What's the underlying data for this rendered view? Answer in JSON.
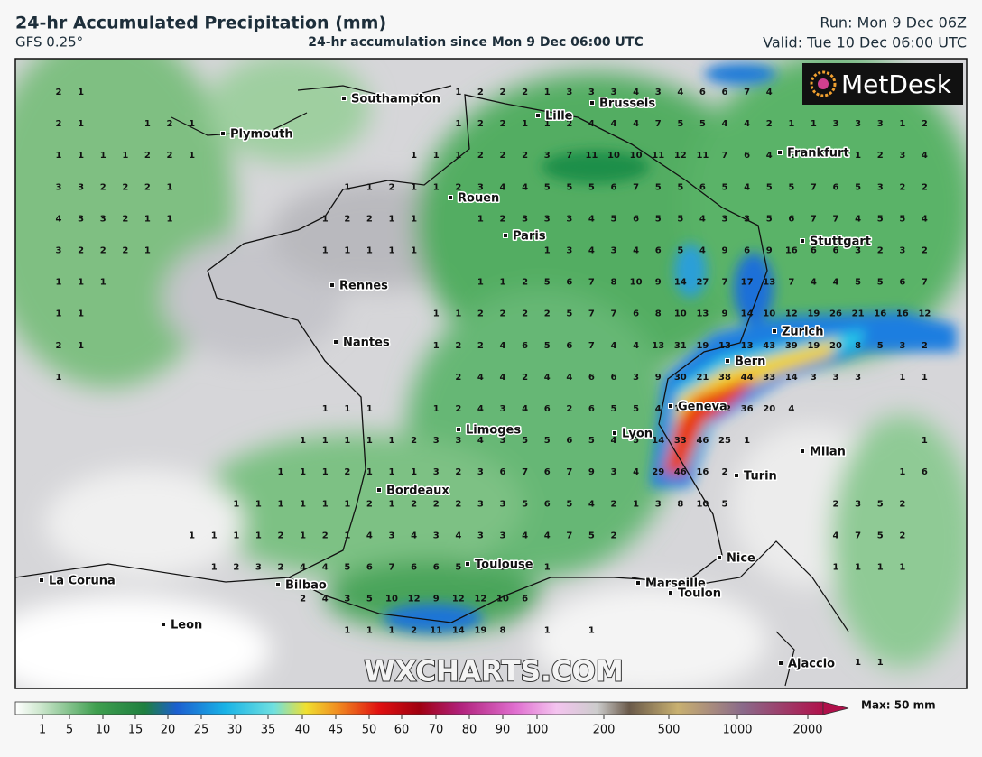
{
  "header": {
    "title": "24-hr Accumulated Precipitation (mm)",
    "model": "GFS 0.25°",
    "subtitle": "24-hr accumulation since Mon 9 Dec 06:00 UTC",
    "run": "Run: Mon 9 Dec 06Z",
    "valid": "Valid: Tue 10 Dec 06:00 UTC"
  },
  "logo": "MetDesk",
  "watermark": "WXCHARTS.COM",
  "cities": [
    "Southampton",
    "Plymouth",
    "Lille",
    "Brussels",
    "Frankfurt",
    "Rouen",
    "Paris",
    "Stuttgart",
    "Rennes",
    "Nantes",
    "Zurich",
    "Bern",
    "Geneva",
    "Limoges",
    "Lyon",
    "Milan",
    "Turin",
    "Bordeaux",
    "Toulouse",
    "Nice",
    "La Coruna",
    "Bilbao",
    "Marseille",
    "Toulon",
    "Leon",
    "Ajaccio"
  ],
  "grid": {
    "rows": [
      [
        2,
        1,
        null,
        null,
        null,
        null,
        null,
        null,
        null,
        null,
        null,
        null,
        null,
        null,
        null,
        null,
        null,
        null,
        1,
        2,
        2,
        2,
        1,
        3,
        3,
        3,
        4,
        3,
        4,
        6,
        6,
        7,
        4,
        null,
        null,
        null,
        null,
        null,
        null,
        null
      ],
      [
        2,
        1,
        null,
        null,
        1,
        2,
        1,
        null,
        null,
        null,
        null,
        null,
        null,
        null,
        null,
        null,
        null,
        null,
        1,
        2,
        2,
        1,
        1,
        2,
        4,
        4,
        4,
        7,
        5,
        5,
        4,
        4,
        2,
        1,
        1,
        3,
        3,
        3,
        1,
        2
      ],
      [
        1,
        1,
        1,
        1,
        2,
        2,
        1,
        null,
        null,
        null,
        null,
        null,
        null,
        null,
        null,
        null,
        1,
        1,
        1,
        2,
        2,
        2,
        3,
        7,
        11,
        10,
        10,
        11,
        12,
        11,
        7,
        6,
        4,
        2,
        1,
        1,
        1,
        2,
        3,
        4
      ],
      [
        3,
        3,
        2,
        2,
        2,
        1,
        null,
        null,
        null,
        null,
        null,
        null,
        null,
        1,
        1,
        2,
        1,
        1,
        2,
        3,
        4,
        4,
        5,
        5,
        5,
        6,
        7,
        5,
        5,
        6,
        5,
        4,
        5,
        5,
        7,
        6,
        5,
        3,
        2,
        2
      ],
      [
        4,
        3,
        3,
        2,
        1,
        1,
        null,
        null,
        null,
        null,
        null,
        null,
        1,
        2,
        2,
        1,
        1,
        null,
        null,
        1,
        2,
        3,
        3,
        3,
        4,
        5,
        6,
        5,
        5,
        4,
        3,
        3,
        5,
        6,
        7,
        7,
        4,
        5,
        5,
        4
      ],
      [
        3,
        2,
        2,
        2,
        1,
        null,
        null,
        null,
        null,
        null,
        null,
        null,
        1,
        1,
        1,
        1,
        1,
        null,
        null,
        null,
        null,
        null,
        1,
        3,
        4,
        3,
        4,
        6,
        5,
        4,
        9,
        6,
        9,
        16,
        6,
        6,
        3,
        2,
        3,
        2
      ],
      [
        1,
        1,
        1,
        null,
        null,
        null,
        null,
        null,
        null,
        null,
        null,
        null,
        null,
        null,
        null,
        null,
        null,
        null,
        null,
        1,
        1,
        2,
        5,
        6,
        7,
        8,
        10,
        9,
        14,
        27,
        7,
        17,
        13,
        7,
        4,
        4,
        5,
        5,
        6,
        7
      ],
      [
        1,
        1,
        null,
        null,
        null,
        null,
        null,
        null,
        null,
        null,
        null,
        null,
        null,
        null,
        null,
        null,
        null,
        1,
        1,
        2,
        2,
        2,
        2,
        5,
        7,
        7,
        6,
        8,
        10,
        13,
        9,
        14,
        10,
        12,
        19,
        26,
        21,
        16,
        16,
        12
      ],
      [
        2,
        1,
        null,
        null,
        null,
        null,
        null,
        null,
        null,
        null,
        null,
        null,
        null,
        null,
        null,
        null,
        null,
        1,
        2,
        2,
        4,
        6,
        5,
        6,
        7,
        4,
        4,
        13,
        31,
        19,
        13,
        13,
        43,
        39,
        19,
        20,
        8,
        5,
        3,
        2
      ],
      [
        1,
        null,
        null,
        null,
        null,
        null,
        null,
        null,
        null,
        null,
        null,
        null,
        null,
        null,
        null,
        null,
        null,
        null,
        2,
        4,
        4,
        2,
        4,
        4,
        6,
        6,
        3,
        9,
        30,
        21,
        38,
        44,
        33,
        14,
        3,
        3,
        3,
        null,
        1,
        1
      ],
      [
        null,
        null,
        null,
        null,
        null,
        null,
        null,
        null,
        null,
        null,
        null,
        null,
        1,
        1,
        1,
        null,
        null,
        1,
        2,
        4,
        3,
        4,
        6,
        2,
        6,
        5,
        5,
        4,
        11,
        22,
        42,
        36,
        20,
        4,
        null,
        null,
        null,
        null,
        null,
        null
      ],
      [
        null,
        null,
        null,
        null,
        null,
        null,
        null,
        null,
        null,
        null,
        null,
        1,
        1,
        1,
        1,
        1,
        2,
        3,
        3,
        4,
        3,
        5,
        5,
        6,
        5,
        4,
        5,
        14,
        33,
        46,
        25,
        1,
        null,
        null,
        null,
        null,
        null,
        null,
        null,
        1
      ],
      [
        null,
        null,
        null,
        null,
        null,
        null,
        null,
        null,
        null,
        null,
        1,
        1,
        1,
        2,
        1,
        1,
        1,
        3,
        2,
        3,
        6,
        7,
        6,
        7,
        9,
        3,
        4,
        29,
        46,
        16,
        2,
        null,
        null,
        null,
        null,
        null,
        null,
        null,
        1,
        6
      ],
      [
        null,
        null,
        null,
        null,
        null,
        null,
        null,
        null,
        1,
        1,
        1,
        1,
        1,
        1,
        2,
        1,
        2,
        2,
        2,
        3,
        3,
        5,
        6,
        5,
        4,
        2,
        1,
        3,
        8,
        10,
        5,
        null,
        null,
        null,
        null,
        2,
        3,
        5,
        2,
        null
      ],
      [
        null,
        null,
        null,
        null,
        null,
        null,
        1,
        1,
        1,
        1,
        2,
        1,
        2,
        1,
        4,
        3,
        4,
        3,
        4,
        3,
        3,
        4,
        4,
        7,
        5,
        2,
        null,
        null,
        null,
        null,
        null,
        null,
        null,
        null,
        null,
        4,
        7,
        5,
        2,
        null
      ],
      [
        null,
        null,
        null,
        null,
        null,
        null,
        null,
        1,
        2,
        3,
        2,
        4,
        4,
        5,
        6,
        7,
        6,
        6,
        5,
        6,
        5,
        7,
        1,
        null,
        null,
        null,
        null,
        null,
        null,
        null,
        null,
        null,
        null,
        null,
        null,
        1,
        1,
        1,
        1,
        null
      ],
      [
        null,
        null,
        null,
        null,
        null,
        null,
        null,
        null,
        null,
        null,
        null,
        2,
        4,
        3,
        5,
        10,
        12,
        9,
        12,
        12,
        10,
        6,
        null,
        null,
        null,
        null,
        null,
        null,
        null,
        null,
        null,
        null,
        null,
        null,
        null,
        null,
        null,
        null,
        null,
        null
      ],
      [
        null,
        null,
        null,
        null,
        null,
        null,
        null,
        null,
        null,
        null,
        null,
        null,
        null,
        1,
        1,
        1,
        2,
        11,
        14,
        19,
        8,
        null,
        1,
        null,
        1,
        null,
        null,
        null,
        null,
        null,
        null,
        null,
        null,
        null,
        null,
        null,
        null,
        null,
        null,
        null
      ],
      [
        null,
        null,
        null,
        null,
        null,
        null,
        null,
        null,
        null,
        null,
        null,
        null,
        null,
        null,
        null,
        null,
        null,
        null,
        null,
        null,
        null,
        null,
        null,
        null,
        null,
        null,
        null,
        null,
        null,
        null,
        null,
        null,
        null,
        null,
        null,
        null,
        1,
        1,
        null,
        null
      ]
    ]
  },
  "colorbar": {
    "ticks": [
      1,
      5,
      10,
      15,
      20,
      25,
      30,
      35,
      40,
      45,
      50,
      60,
      70,
      80,
      90,
      100,
      200,
      500,
      1000,
      2000
    ],
    "max_label": "Max: 50 mm"
  }
}
